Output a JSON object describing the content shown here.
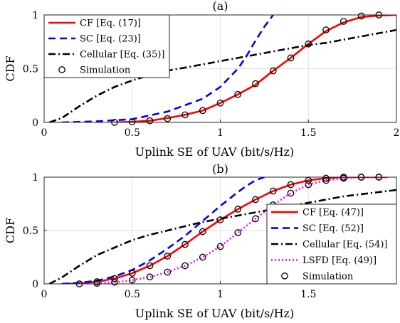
{
  "chart_data": [
    {
      "type": "line",
      "panel": "(a)",
      "xlabel": "Uplink SE of UAV (bit/s/Hz)",
      "ylabel": "CDF",
      "xlim": [
        0,
        2
      ],
      "ylim": [
        0,
        1
      ],
      "xticks": [
        0,
        0.5,
        1,
        1.5,
        2
      ],
      "xtick_labels": [
        "0",
        "0.5",
        "1",
        "1.5",
        "2"
      ],
      "yticks": [
        0,
        0.5,
        1
      ],
      "ytick_labels": [
        "0",
        "0.5",
        "1"
      ],
      "grid": true,
      "legend_position": "top-left",
      "series": [
        {
          "name": "CF [Eq. (17)]",
          "style": "solid",
          "color": "#ff0000",
          "x": [
            0.4,
            0.5,
            0.6,
            0.7,
            0.8,
            0.9,
            1.0,
            1.1,
            1.2,
            1.3,
            1.4,
            1.5,
            1.6,
            1.7,
            1.8,
            1.9,
            2.0
          ],
          "y": [
            0.0,
            0.005,
            0.015,
            0.04,
            0.07,
            0.11,
            0.18,
            0.26,
            0.35,
            0.48,
            0.6,
            0.73,
            0.85,
            0.93,
            0.98,
            0.995,
            1.0
          ]
        },
        {
          "name": "SC [Eq. (23)]",
          "style": "dashed",
          "color": "#0000ff",
          "x": [
            0.1,
            0.3,
            0.5,
            0.7,
            0.9,
            1.0,
            1.1,
            1.15,
            1.2,
            1.25,
            1.3
          ],
          "y": [
            0.0,
            0.01,
            0.03,
            0.1,
            0.22,
            0.33,
            0.5,
            0.62,
            0.76,
            0.89,
            1.0
          ]
        },
        {
          "name": "Cellular [Eq. (35)]",
          "style": "dashdot",
          "color": "#000000",
          "x": [
            0.03,
            0.1,
            0.2,
            0.3,
            0.4,
            0.5,
            0.6,
            0.7,
            0.8,
            0.9,
            1.0,
            1.1,
            1.2,
            1.3,
            1.4,
            1.5,
            1.6,
            1.7,
            1.8,
            1.9,
            2.0
          ],
          "y": [
            0.0,
            0.04,
            0.15,
            0.25,
            0.33,
            0.39,
            0.44,
            0.48,
            0.51,
            0.54,
            0.57,
            0.6,
            0.63,
            0.66,
            0.69,
            0.72,
            0.74,
            0.77,
            0.8,
            0.83,
            0.86
          ]
        },
        {
          "name": "Simulation",
          "style": "markers",
          "color": "#000000",
          "x": [
            0.4,
            0.5,
            0.6,
            0.7,
            0.8,
            0.9,
            1.0,
            1.1,
            1.2,
            1.3,
            1.4,
            1.5,
            1.6,
            1.7,
            1.8,
            1.9
          ],
          "y": [
            0.0,
            0.005,
            0.015,
            0.035,
            0.07,
            0.11,
            0.18,
            0.26,
            0.36,
            0.48,
            0.6,
            0.73,
            0.86,
            0.94,
            0.99,
            1.0
          ]
        }
      ]
    },
    {
      "type": "line",
      "panel": "(b)",
      "xlabel": "Uplink SE of UAV (bit/s/Hz)",
      "ylabel": "CDF",
      "xlim": [
        0,
        2
      ],
      "ylim": [
        0,
        1
      ],
      "xticks": [
        0,
        0.5,
        1,
        1.5
      ],
      "xtick_labels": [
        "0",
        "0.5",
        "1",
        "1.5"
      ],
      "yticks": [
        0,
        0.5,
        1
      ],
      "ytick_labels": [
        "0",
        "0.5",
        "1"
      ],
      "grid": true,
      "legend_position": "bottom-right",
      "series": [
        {
          "name": "CF [Eq. (47)]",
          "style": "solid",
          "color": "#ff0000",
          "x": [
            0.1,
            0.2,
            0.3,
            0.4,
            0.5,
            0.6,
            0.7,
            0.8,
            0.9,
            1.0,
            1.1,
            1.2,
            1.3,
            1.4,
            1.5,
            1.6,
            1.7,
            1.8,
            1.9,
            1.95
          ],
          "y": [
            0.0,
            0.005,
            0.02,
            0.05,
            0.1,
            0.17,
            0.26,
            0.37,
            0.49,
            0.6,
            0.7,
            0.79,
            0.87,
            0.93,
            0.97,
            0.99,
            1.0,
            1.0,
            1.0,
            1.0
          ]
        },
        {
          "name": "SC [Eq. (52)]",
          "style": "dashed",
          "color": "#0000ff",
          "x": [
            0.1,
            0.2,
            0.3,
            0.4,
            0.5,
            0.6,
            0.7,
            0.8,
            0.9,
            1.0,
            1.1,
            1.15,
            1.2,
            1.25
          ],
          "y": [
            0.0,
            0.01,
            0.03,
            0.07,
            0.13,
            0.22,
            0.33,
            0.45,
            0.59,
            0.73,
            0.86,
            0.92,
            0.97,
            1.0
          ]
        },
        {
          "name": "Cellular [Eq. (54)]",
          "style": "dashdot",
          "color": "#000000",
          "x": [
            0.03,
            0.1,
            0.2,
            0.3,
            0.4,
            0.5,
            0.6,
            0.7,
            0.8,
            0.9,
            1.0,
            1.1,
            1.2,
            1.3,
            1.4,
            1.5,
            1.6,
            1.7,
            1.8,
            1.9,
            2.0
          ],
          "y": [
            0.0,
            0.06,
            0.17,
            0.27,
            0.34,
            0.41,
            0.46,
            0.5,
            0.54,
            0.58,
            0.61,
            0.64,
            0.67,
            0.7,
            0.73,
            0.76,
            0.79,
            0.82,
            0.84,
            0.86,
            0.88
          ]
        },
        {
          "name": "LSFD [Eq. (49)]",
          "style": "dotted",
          "color": "#ff00ff",
          "x": [
            0.2,
            0.3,
            0.4,
            0.5,
            0.6,
            0.7,
            0.8,
            0.9,
            1.0,
            1.1,
            1.2,
            1.3,
            1.4,
            1.5,
            1.6,
            1.7,
            1.8,
            1.9,
            1.95
          ],
          "y": [
            0.0,
            0.005,
            0.015,
            0.035,
            0.065,
            0.11,
            0.17,
            0.25,
            0.35,
            0.48,
            0.61,
            0.74,
            0.85,
            0.93,
            0.97,
            0.99,
            1.0,
            1.0,
            1.0
          ]
        },
        {
          "name": "Simulation",
          "style": "markers",
          "color": "#000000",
          "x": [
            0.2,
            0.3,
            0.4,
            0.5,
            0.6,
            0.7,
            0.8,
            0.9,
            1.0,
            1.1,
            1.2,
            1.3,
            1.4,
            1.5,
            1.6,
            1.7,
            1.8,
            1.9,
            0.3,
            0.4,
            0.5,
            0.6,
            0.7,
            0.8,
            0.9,
            1.0,
            1.1,
            1.2,
            1.3,
            1.4,
            1.5,
            1.6,
            1.7,
            1.8,
            1.9
          ],
          "y": [
            0.0,
            0.005,
            0.015,
            0.035,
            0.065,
            0.11,
            0.17,
            0.25,
            0.35,
            0.48,
            0.61,
            0.74,
            0.85,
            0.93,
            0.97,
            0.99,
            1.0,
            1.0,
            0.02,
            0.05,
            0.1,
            0.17,
            0.26,
            0.37,
            0.49,
            0.6,
            0.7,
            0.79,
            0.87,
            0.93,
            0.97,
            0.99,
            1.0,
            1.0,
            1.0
          ]
        }
      ]
    }
  ]
}
